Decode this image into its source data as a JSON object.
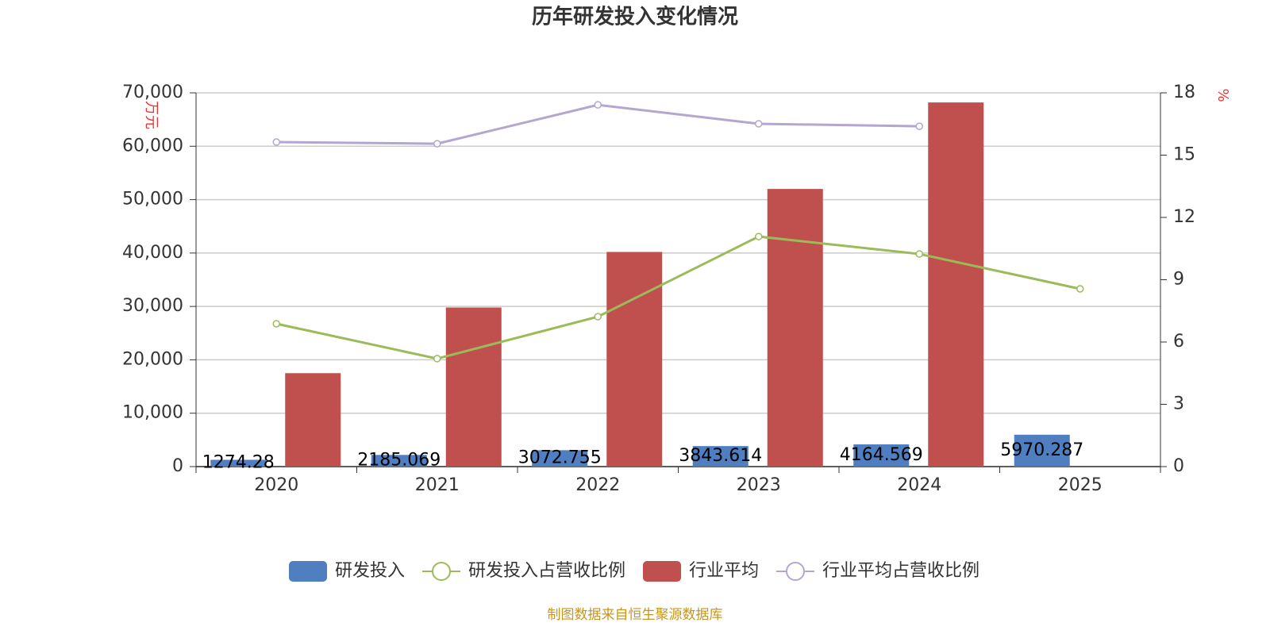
{
  "chart_data": {
    "type": "bar",
    "title": "历年研发投入变化情况",
    "y_label": "万元",
    "y2_label": "%",
    "source": "制图数据来自恒生聚源数据库",
    "categories": [
      "2020",
      "2021",
      "2022",
      "2023",
      "2024",
      "2025"
    ],
    "series": [
      {
        "name": "研发投入",
        "type": "bar",
        "color": "#4f7ec1",
        "values": [
          1274.28,
          2185.069,
          3072.755,
          3843.614,
          4164.569,
          5970.287
        ]
      },
      {
        "name": "研发投入占营收比例",
        "type": "line",
        "axis": "y2",
        "color": "#9bbb59",
        "values": [
          6.88,
          5.2,
          7.22,
          11.08,
          10.24,
          8.56
        ]
      },
      {
        "name": "行业平均",
        "type": "bar",
        "color": "#c0504d",
        "values": [
          17500,
          29800,
          40200,
          52000,
          68200,
          null
        ]
      },
      {
        "name": "行业平均占营收比例",
        "type": "line",
        "axis": "y2",
        "color": "#b3a6d0",
        "values": [
          15.63,
          15.55,
          17.42,
          16.51,
          16.39,
          null
        ]
      }
    ],
    "ylim": [
      0,
      70000
    ],
    "yticks": [
      0,
      {
        "value": 10000,
        "label": "10,000"
      },
      {
        "value": 20000,
        "label": "20,000"
      },
      {
        "value": 30000,
        "label": "30,000"
      },
      {
        "value": 40000,
        "label": "40,000"
      },
      {
        "value": 50000,
        "label": "50,000"
      },
      {
        "value": 60000,
        "label": "60,000"
      },
      {
        "value": 70000,
        "label": "70,000"
      }
    ],
    "y2lim": [
      0,
      18
    ],
    "y2ticks": [
      0,
      3,
      6,
      9,
      12,
      15,
      18
    ],
    "grid": true
  }
}
